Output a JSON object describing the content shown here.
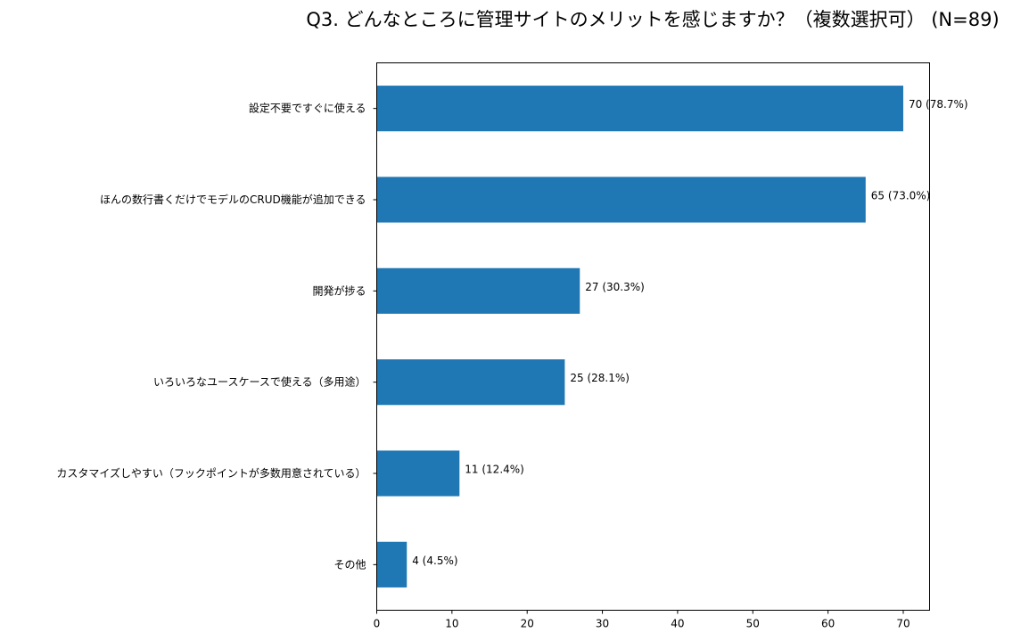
{
  "chart_data": {
    "type": "bar",
    "orientation": "horizontal",
    "title": "Q3. どんなところに管理サイトのメリットを感じますか？（複数選択可） (N=89)",
    "categories": [
      "設定不要ですぐに使える",
      "ほんの数行書くだけでモデルのCRUD機能が追加できる",
      "開発が捗る",
      "いろいろなユースケースで使える（多用途）",
      "カスタマイズしやすい（フックポイントが多数用意されている）",
      "その他"
    ],
    "values": [
      70,
      65,
      27,
      25,
      11,
      4
    ],
    "value_labels": [
      "70 (78.7%)",
      "65 (73.0%)",
      "27 (30.3%)",
      "25 (28.1%)",
      "11 (12.4%)",
      "4 (4.5%)"
    ],
    "xlim": [
      0,
      73.5
    ],
    "xticks": [
      "0",
      "10",
      "20",
      "30",
      "40",
      "50",
      "60",
      "70"
    ],
    "xlabel": "",
    "ylabel": "",
    "grid": false,
    "bar_color": "#1f77b4"
  }
}
